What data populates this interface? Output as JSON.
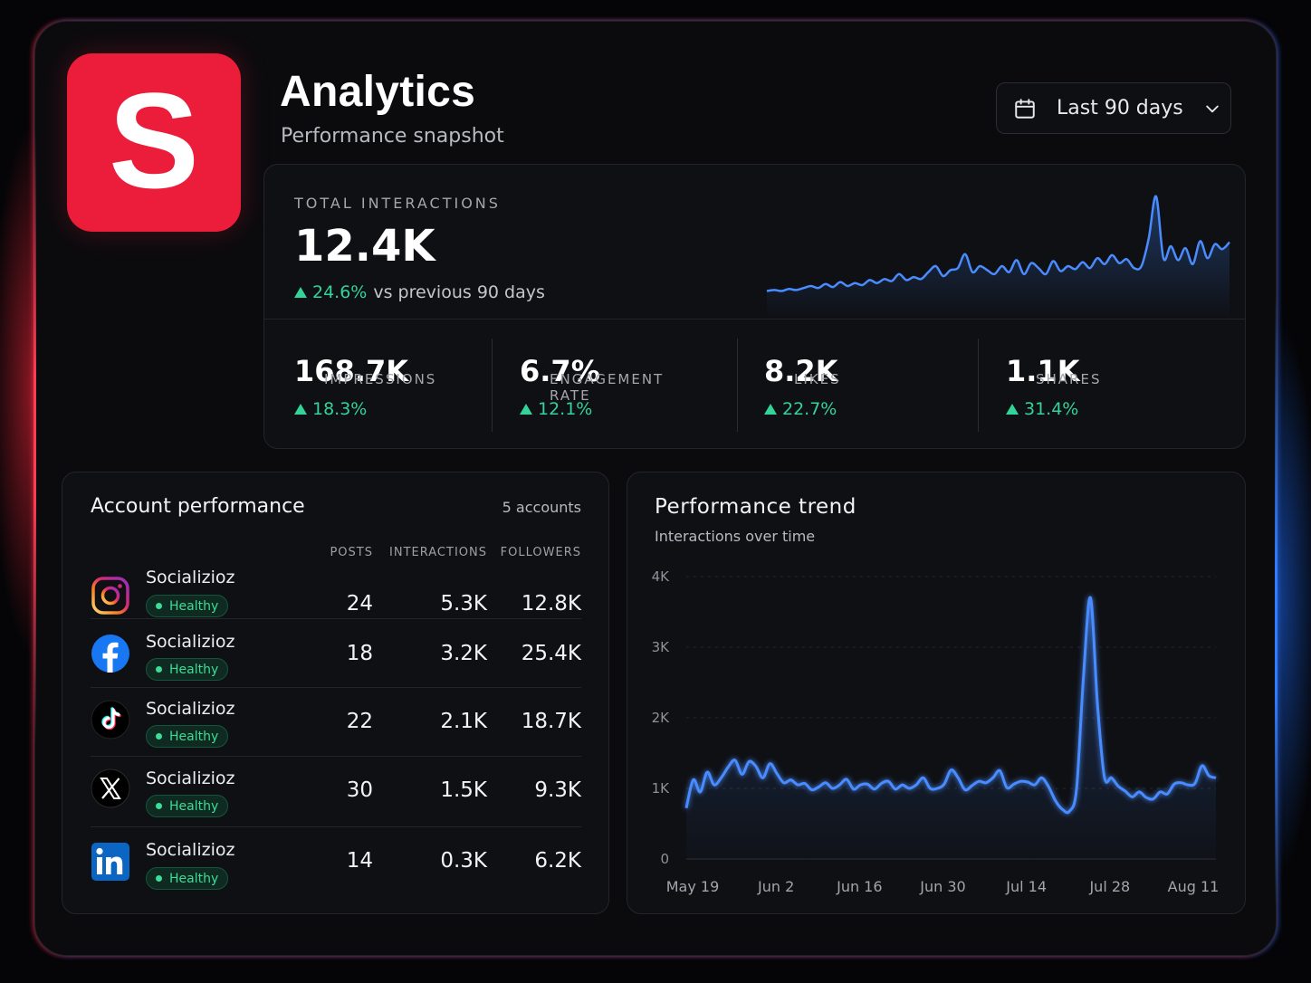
{
  "app": {
    "logo_letter": "S",
    "title": "Analytics",
    "subtitle": "Performance snapshot"
  },
  "date_range": {
    "label": "Last 90 days",
    "icon": "calendar-icon",
    "chevron": "chevron-down-icon"
  },
  "hero": {
    "label": "TOTAL INTERACTIONS",
    "value": "12.4K",
    "delta": "24.6%",
    "delta_suffix": "vs previous 90 days",
    "sparkline": [
      0.05,
      0.06,
      0.05,
      0.07,
      0.06,
      0.08,
      0.1,
      0.08,
      0.12,
      0.09,
      0.14,
      0.1,
      0.13,
      0.11,
      0.16,
      0.13,
      0.17,
      0.15,
      0.22,
      0.16,
      0.19,
      0.17,
      0.24,
      0.3,
      0.2,
      0.26,
      0.28,
      0.42,
      0.24,
      0.3,
      0.26,
      0.22,
      0.3,
      0.24,
      0.36,
      0.22,
      0.33,
      0.28,
      0.22,
      0.35,
      0.25,
      0.3,
      0.27,
      0.34,
      0.28,
      0.38,
      0.32,
      0.41,
      0.33,
      0.37,
      0.28,
      0.3,
      0.58,
      1.0,
      0.38,
      0.5,
      0.36,
      0.48,
      0.32,
      0.55,
      0.38,
      0.52,
      0.47,
      0.54
    ]
  },
  "stats": [
    {
      "label": "IMPRESSIONS",
      "value": "168.7K",
      "delta": "18.3%"
    },
    {
      "label": "ENGAGEMENT RATE",
      "value": "6.7%",
      "delta": "12.1%"
    },
    {
      "label": "LIKES",
      "value": "8.2K",
      "delta": "22.7%"
    },
    {
      "label": "SHARES",
      "value": "1.1K",
      "delta": "31.4%"
    }
  ],
  "accounts": {
    "title": "Account performance",
    "count": "5 accounts",
    "columns": [
      "POSTS",
      "INTERACTIONS",
      "FOLLOWERS"
    ],
    "rows": [
      {
        "platform": "instagram",
        "icon": "instagram-icon",
        "name": "Socializioz",
        "status": "Healthy",
        "posts": "24",
        "interactions": "5.3K",
        "followers": "12.8K"
      },
      {
        "platform": "facebook",
        "icon": "facebook-icon",
        "name": "Socializioz",
        "status": "Healthy",
        "posts": "18",
        "interactions": "3.2K",
        "followers": "25.4K"
      },
      {
        "platform": "tiktok",
        "icon": "tiktok-icon",
        "name": "Socializioz",
        "status": "Healthy",
        "posts": "22",
        "interactions": "2.1K",
        "followers": "18.7K"
      },
      {
        "platform": "x",
        "icon": "x-icon",
        "name": "Socializioz",
        "status": "Healthy",
        "posts": "30",
        "interactions": "1.5K",
        "followers": "9.3K"
      },
      {
        "platform": "linkedin",
        "icon": "linkedin-icon",
        "name": "Socializioz",
        "status": "Healthy",
        "posts": "14",
        "interactions": "0.3K",
        "followers": "6.2K"
      }
    ]
  },
  "trend": {
    "title": "Performance trend",
    "subtitle": "Interactions over time"
  },
  "colors": {
    "accent_red": "#ec1c3b",
    "accent_blue": "#3b82f6",
    "positive": "#34d399"
  },
  "chart_data": {
    "type": "area",
    "title": "Performance trend",
    "subtitle": "Interactions over time",
    "ylim": [
      0,
      4000
    ],
    "yticks": [
      "0",
      "1K",
      "2K",
      "3K",
      "4K"
    ],
    "yticks_values": [
      0,
      1000,
      2000,
      3000,
      4000
    ],
    "xticks": [
      "May 19",
      "Jun 2",
      "Jun 16",
      "Jun 30",
      "Jul 14",
      "Jul 28",
      "Aug 11"
    ],
    "series": [
      {
        "values": [
          720,
          1120,
          950,
          1230,
          1050,
          1150,
          1300,
          1400,
          1200,
          1380,
          1310,
          1150,
          1350,
          1210,
          1080,
          1120,
          1050,
          1070,
          980,
          1020,
          1080,
          1000,
          1050,
          1130,
          990,
          1050,
          1060,
          990,
          1070,
          1100,
          990,
          1050,
          1000,
          1050,
          1150,
          1000,
          1000,
          1060,
          1260,
          1150,
          980,
          1040,
          1100,
          1080,
          1150,
          1250,
          1010,
          1060,
          1100,
          1090,
          1050,
          1150,
          1020,
          820,
          700,
          680,
          1000,
          2600,
          3700,
          2200,
          1160,
          1150,
          1030,
          960,
          880,
          950,
          870,
          850,
          950,
          920,
          1060,
          1080,
          1050,
          1070,
          1320,
          1180,
          1150
        ]
      }
    ],
    "grid": true,
    "legend": "none"
  }
}
